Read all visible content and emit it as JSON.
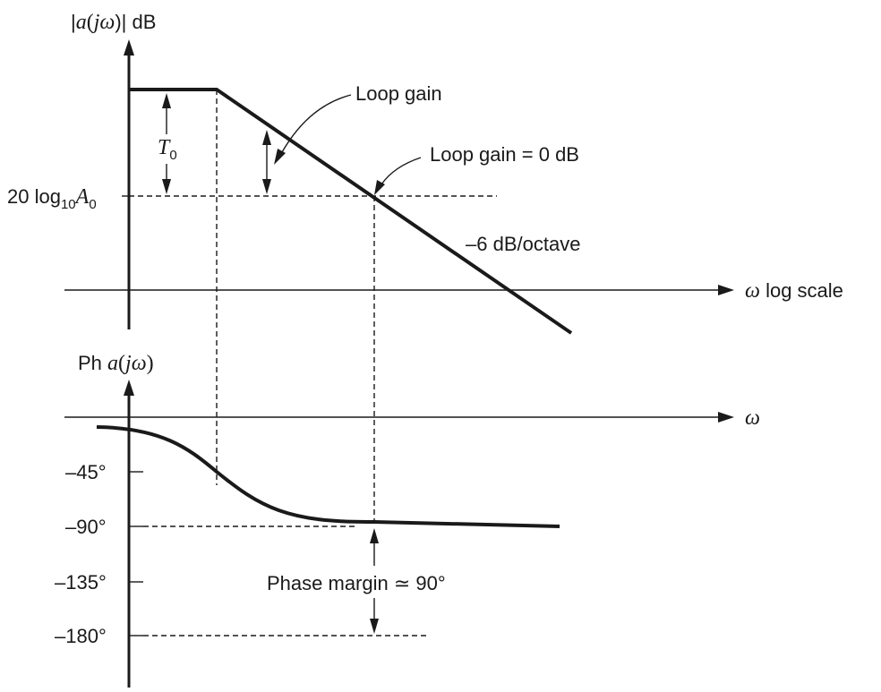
{
  "magnitude_plot": {
    "y_axis_label": {
      "bar_open": "|",
      "func": "a",
      "paren_open": "(",
      "j": "j",
      "omega": "ω",
      "paren_close_bar": ")|",
      "unit": " dB"
    },
    "x_axis_label": {
      "omega": "ω",
      "scale": " log scale"
    },
    "level_label": {
      "prefix": "20 log",
      "base": "10",
      "symbol": "A",
      "subscript": "0"
    },
    "t0_label": {
      "symbol": "T",
      "subscript": "0"
    },
    "loop_gain_label": "Loop gain",
    "crossover_label": "Loop gain = 0 dB",
    "slope_label": "–6 dB/octave"
  },
  "phase_plot": {
    "y_axis_label": {
      "prefix": "Ph ",
      "func": "a",
      "paren_open": "(",
      "j": "j",
      "omega": "ω",
      "paren_close": ")"
    },
    "x_axis_label": "ω",
    "ticks": [
      "–45°",
      "–90°",
      "–135°",
      "–180°"
    ],
    "phase_margin_label": "Phase margin ≃ 90°"
  }
}
